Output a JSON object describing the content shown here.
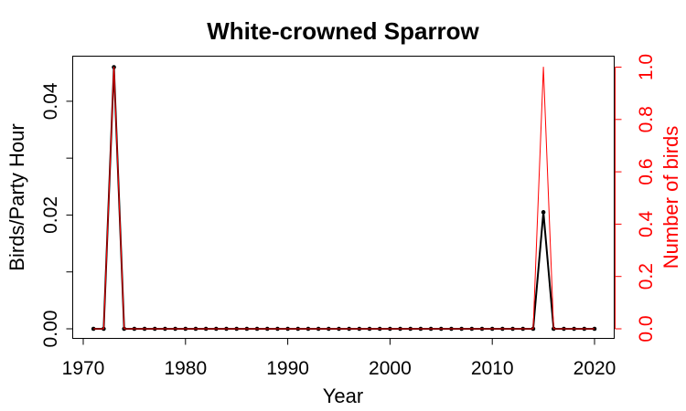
{
  "chart_data": {
    "type": "line",
    "title": "White-crowned Sparrow",
    "xlabel": "Year",
    "ylabel": "Birds/Party Hour",
    "ylabel_right": "Number of birds",
    "xlim": [
      1970,
      2020
    ],
    "ylim": [
      0,
      0.046
    ],
    "ylim_right": [
      0,
      1.0
    ],
    "x_ticks": [
      1970,
      1980,
      1990,
      2000,
      2010,
      2020
    ],
    "y_ticks": [
      0,
      0.01,
      0.02,
      0.03,
      0.04
    ],
    "y_tick_labels": [
      "0.00",
      "",
      "0.02",
      "",
      "0.04"
    ],
    "y_ticks_right": [
      0,
      0.2,
      0.4,
      0.6,
      0.8,
      1.0
    ],
    "y_tick_labels_right": [
      "0.0",
      "0.2",
      "0.4",
      "0.6",
      "0.8",
      "1.0"
    ],
    "grid": false,
    "legend": "none",
    "colors": {
      "primary": "#000000",
      "secondary": "#ff0000"
    },
    "x": [
      1971,
      1972,
      1973,
      1974,
      1975,
      1976,
      1977,
      1978,
      1979,
      1980,
      1981,
      1982,
      1983,
      1984,
      1985,
      1986,
      1987,
      1988,
      1989,
      1990,
      1991,
      1992,
      1993,
      1994,
      1995,
      1996,
      1997,
      1998,
      1999,
      2000,
      2001,
      2002,
      2003,
      2004,
      2005,
      2006,
      2007,
      2008,
      2009,
      2010,
      2011,
      2012,
      2013,
      2014,
      2015,
      2016,
      2017,
      2018,
      2019,
      2020
    ],
    "series": [
      {
        "axis": "left",
        "values": [
          0,
          0,
          0.046,
          0,
          0,
          0,
          0,
          0,
          0,
          0,
          0,
          0,
          0,
          0,
          0,
          0,
          0,
          0,
          0,
          0,
          0,
          0,
          0,
          0,
          0,
          0,
          0,
          0,
          0,
          0,
          0,
          0,
          0,
          0,
          0,
          0,
          0,
          0,
          0,
          0,
          0,
          0,
          0,
          0,
          0.0205,
          0,
          0,
          0,
          0,
          0
        ]
      },
      {
        "axis": "right",
        "values": [
          0,
          0,
          1,
          0,
          0,
          0,
          0,
          0,
          0,
          0,
          0,
          0,
          0,
          0,
          0,
          0,
          0,
          0,
          0,
          0,
          0,
          0,
          0,
          0,
          0,
          0,
          0,
          0,
          0,
          0,
          0,
          0,
          0,
          0,
          0,
          0,
          0,
          0,
          0,
          0,
          0,
          0,
          0,
          0,
          1,
          0,
          0,
          0,
          0,
          0
        ]
      }
    ]
  }
}
